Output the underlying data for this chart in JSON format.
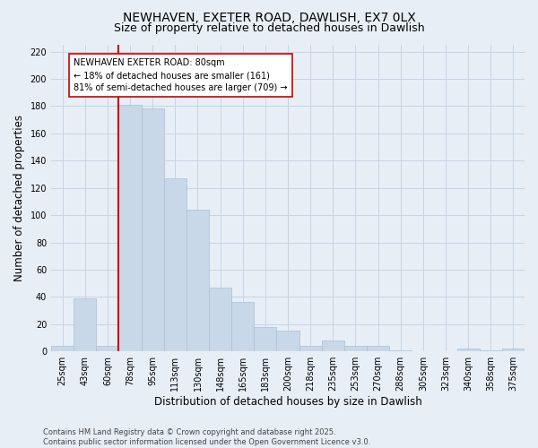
{
  "title_line1": "NEWHAVEN, EXETER ROAD, DAWLISH, EX7 0LX",
  "title_line2": "Size of property relative to detached houses in Dawlish",
  "xlabel": "Distribution of detached houses by size in Dawlish",
  "ylabel": "Number of detached properties",
  "categories": [
    "25sqm",
    "43sqm",
    "60sqm",
    "78sqm",
    "95sqm",
    "113sqm",
    "130sqm",
    "148sqm",
    "165sqm",
    "183sqm",
    "200sqm",
    "218sqm",
    "235sqm",
    "253sqm",
    "270sqm",
    "288sqm",
    "305sqm",
    "323sqm",
    "340sqm",
    "358sqm",
    "375sqm"
  ],
  "values": [
    4,
    39,
    4,
    181,
    178,
    127,
    104,
    47,
    36,
    18,
    15,
    4,
    8,
    4,
    4,
    1,
    0,
    0,
    2,
    1,
    2
  ],
  "bar_color": "#c8d8e8",
  "bar_edge_color": "#a8c0d8",
  "grid_color": "#c8d4e4",
  "background_color": "#e8eef6",
  "vline_index": 3,
  "vline_color": "#cc0000",
  "annotation_text": "NEWHAVEN EXETER ROAD: 80sqm\n← 18% of detached houses are smaller (161)\n81% of semi-detached houses are larger (709) →",
  "annotation_box_color": "#ffffff",
  "annotation_box_edge": "#cc0000",
  "ylim": [
    0,
    225
  ],
  "yticks": [
    0,
    20,
    40,
    60,
    80,
    100,
    120,
    140,
    160,
    180,
    200,
    220
  ],
  "footer": "Contains HM Land Registry data © Crown copyright and database right 2025.\nContains public sector information licensed under the Open Government Licence v3.0.",
  "title_fontsize": 10,
  "subtitle_fontsize": 9,
  "axis_label_fontsize": 8.5,
  "tick_fontsize": 7,
  "annotation_fontsize": 7,
  "footer_fontsize": 6
}
